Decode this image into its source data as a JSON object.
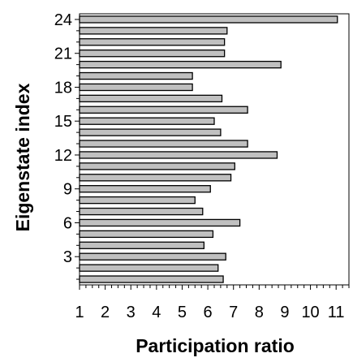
{
  "chart_data": {
    "type": "bar",
    "orientation": "horizontal",
    "xlabel": "Participation ratio",
    "ylabel": "Eigenstate index",
    "xlim": [
      1,
      11.5
    ],
    "x_ticks": [
      "1",
      "2",
      "3",
      "4",
      "5",
      "6",
      "7",
      "8",
      "9",
      "10",
      "11"
    ],
    "ylim": [
      0.5,
      24.5
    ],
    "y_ticks": [
      "3",
      "6",
      "9",
      "12",
      "15",
      "18",
      "21",
      "24"
    ],
    "categories": [
      1,
      2,
      3,
      4,
      5,
      6,
      7,
      8,
      9,
      10,
      11,
      12,
      13,
      14,
      15,
      16,
      17,
      18,
      19,
      20,
      21,
      22,
      23,
      24
    ],
    "values": [
      6.6,
      6.4,
      6.7,
      5.85,
      6.2,
      7.25,
      5.8,
      5.5,
      6.1,
      6.9,
      7.05,
      8.7,
      7.55,
      6.5,
      6.25,
      7.55,
      6.55,
      5.4,
      5.4,
      8.85,
      6.65,
      6.65,
      6.75,
      11.05
    ],
    "grid": false,
    "legend": "none"
  }
}
